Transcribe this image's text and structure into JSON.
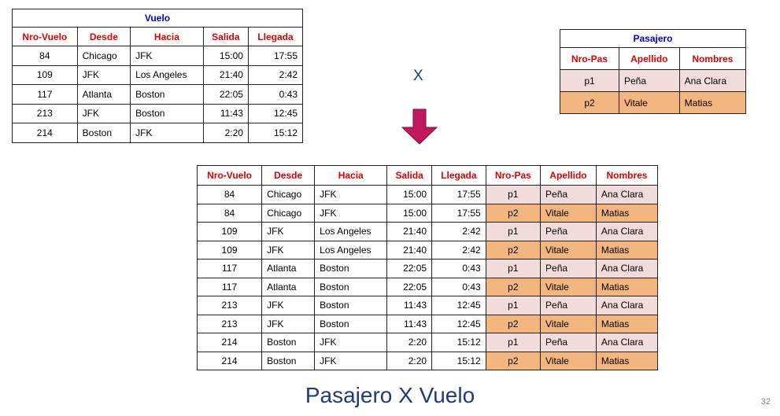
{
  "vuelo": {
    "title": "Vuelo",
    "headers": [
      "Nro-Vuelo",
      "Desde",
      "Hacia",
      "Salida",
      "Llegada"
    ],
    "rows": [
      [
        "84",
        "Chicago",
        "JFK",
        "15:00",
        "17:55"
      ],
      [
        "109",
        "JFK",
        "Los Angeles",
        "21:40",
        "2:42"
      ],
      [
        "117",
        "Atlanta",
        "Boston",
        "22:05",
        "0:43"
      ],
      [
        "213",
        "JFK",
        "Boston",
        "11:43",
        "12:45"
      ],
      [
        "214",
        "Boston",
        "JFK",
        "2:20",
        "15:12"
      ]
    ]
  },
  "pasajero": {
    "title": "Pasajero",
    "headers": [
      "Nro-Pas",
      "Apellido",
      "Nombres"
    ],
    "rows": [
      [
        "p1",
        "Peña",
        "Ana Clara"
      ],
      [
        "p2",
        "Vitale",
        "Matias"
      ]
    ]
  },
  "operator": "X",
  "result": {
    "headers": [
      "Nro-Vuelo",
      "Desde",
      "Hacia",
      "Salida",
      "Llegada",
      "Nro-Pas",
      "Apellido",
      "Nombres"
    ],
    "rows": [
      [
        "84",
        "Chicago",
        "JFK",
        "15:00",
        "17:55",
        "p1",
        "Peña",
        "Ana Clara"
      ],
      [
        "84",
        "Chicago",
        "JFK",
        "15:00",
        "17:55",
        "p2",
        "Vitale",
        "Matias"
      ],
      [
        "109",
        "JFK",
        "Los Angeles",
        "21:40",
        "2:42",
        "p1",
        "Peña",
        "Ana Clara"
      ],
      [
        "109",
        "JFK",
        "Los Angeles",
        "21:40",
        "2:42",
        "p2",
        "Vitale",
        "Matias"
      ],
      [
        "117",
        "Atlanta",
        "Boston",
        "22:05",
        "0:43",
        "p1",
        "Peña",
        "Ana Clara"
      ],
      [
        "117",
        "Atlanta",
        "Boston",
        "22:05",
        "0:43",
        "p2",
        "Vitale",
        "Matias"
      ],
      [
        "213",
        "JFK",
        "Boston",
        "11:43",
        "12:45",
        "p1",
        "Peña",
        "Ana Clara"
      ],
      [
        "213",
        "JFK",
        "Boston",
        "11:43",
        "12:45",
        "p2",
        "Vitale",
        "Matias"
      ],
      [
        "214",
        "Boston",
        "JFK",
        "2:20",
        "15:12",
        "p1",
        "Peña",
        "Ana Clara"
      ],
      [
        "214",
        "Boston",
        "JFK",
        "2:20",
        "15:12",
        "p2",
        "Vitale",
        "Matias"
      ]
    ]
  },
  "caption": "Pasajero X Vuelo",
  "page_number": "32",
  "colors": {
    "header_text": "#e00000",
    "title_text": "#0000cc",
    "p1_fill": "#f2dcdb",
    "p2_fill": "#f4b67f",
    "arrow": "#c0185c",
    "caption_text": "#1f3b7a"
  }
}
